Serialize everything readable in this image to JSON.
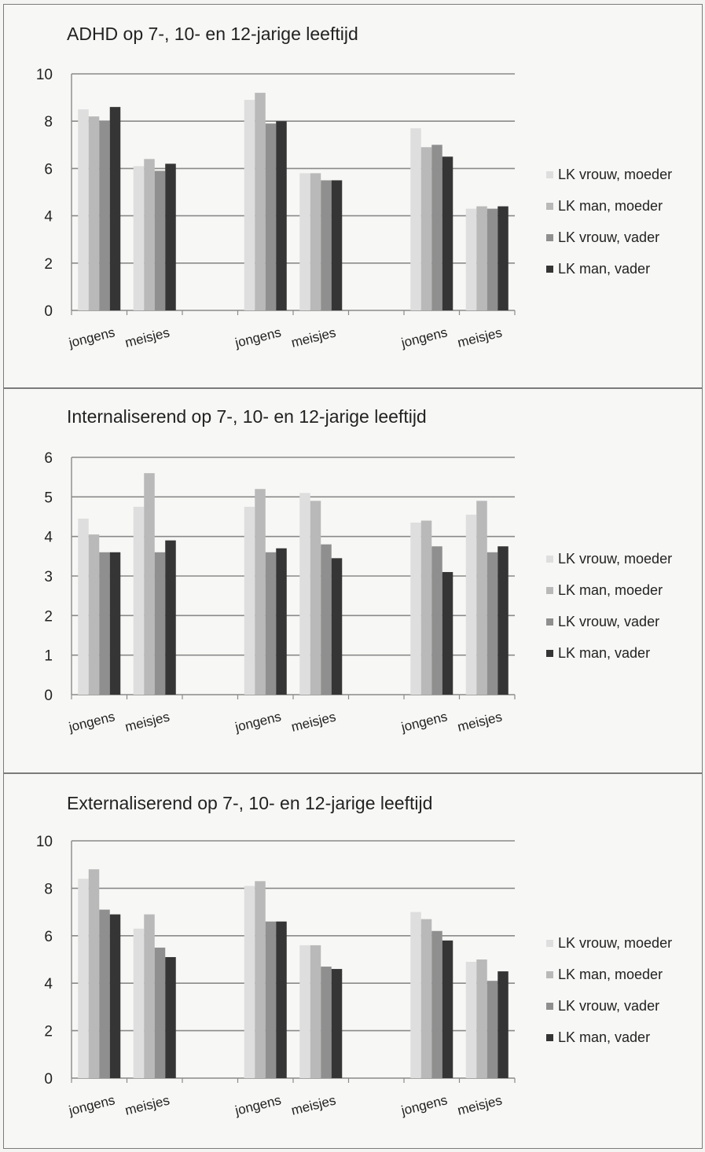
{
  "colors": [
    "#dedede",
    "#b9b9b9",
    "#8f8f8f",
    "#353535"
  ],
  "chart_data": [
    {
      "type": "bar",
      "title": "ADHD op 7-, 10- en 12-jarige leeftijd",
      "categories": [
        "jongens",
        "meisjes",
        "jongens",
        "meisjes",
        "jongens",
        "meisjes"
      ],
      "ylim": [
        0,
        10
      ],
      "yticks": [
        0,
        2,
        4,
        6,
        8,
        10
      ],
      "grid": true,
      "legend_position": "right",
      "series": [
        {
          "name": "LK vrouw, moeder",
          "values": [
            8.5,
            6.1,
            8.9,
            5.8,
            7.7,
            4.3
          ]
        },
        {
          "name": "LK man, moeder",
          "values": [
            8.2,
            6.4,
            9.2,
            5.8,
            6.9,
            4.4
          ]
        },
        {
          "name": "LK vrouw, vader",
          "values": [
            8.0,
            5.9,
            7.9,
            5.5,
            7.0,
            4.3
          ]
        },
        {
          "name": "LK man, vader",
          "values": [
            8.6,
            6.2,
            8.0,
            5.5,
            6.5,
            4.4
          ]
        }
      ]
    },
    {
      "type": "bar",
      "title": "Internaliserend op 7-, 10- en 12-jarige leeftijd",
      "categories": [
        "jongens",
        "meisjes",
        "jongens",
        "meisjes",
        "jongens",
        "meisjes"
      ],
      "ylim": [
        0,
        6
      ],
      "yticks": [
        0,
        1,
        2,
        3,
        4,
        5,
        6
      ],
      "grid": true,
      "legend_position": "right",
      "series": [
        {
          "name": "LK vrouw, moeder",
          "values": [
            4.45,
            4.75,
            4.75,
            5.1,
            4.35,
            4.55
          ]
        },
        {
          "name": "LK man, moeder",
          "values": [
            4.05,
            5.6,
            5.2,
            4.9,
            4.4,
            4.9
          ]
        },
        {
          "name": "LK vrouw, vader",
          "values": [
            3.6,
            3.6,
            3.6,
            3.8,
            3.75,
            3.6
          ]
        },
        {
          "name": "LK man, vader",
          "values": [
            3.6,
            3.9,
            3.7,
            3.45,
            3.1,
            3.75
          ]
        }
      ]
    },
    {
      "type": "bar",
      "title": "Externaliserend op 7-, 10- en 12-jarige leeftijd",
      "categories": [
        "jongens",
        "meisjes",
        "jongens",
        "meisjes",
        "jongens",
        "meisjes"
      ],
      "ylim": [
        0,
        10
      ],
      "yticks": [
        0,
        2,
        4,
        6,
        8,
        10
      ],
      "grid": true,
      "legend_position": "right",
      "series": [
        {
          "name": "LK vrouw, moeder",
          "values": [
            8.4,
            6.3,
            8.1,
            5.6,
            7.0,
            4.9
          ]
        },
        {
          "name": "LK man, moeder",
          "values": [
            8.8,
            6.9,
            8.3,
            5.6,
            6.7,
            5.0
          ]
        },
        {
          "name": "LK vrouw, vader",
          "values": [
            7.1,
            5.5,
            6.6,
            4.7,
            6.2,
            4.1
          ]
        },
        {
          "name": "LK man, vader",
          "values": [
            6.9,
            5.1,
            6.6,
            4.6,
            5.8,
            4.5
          ]
        }
      ]
    }
  ]
}
